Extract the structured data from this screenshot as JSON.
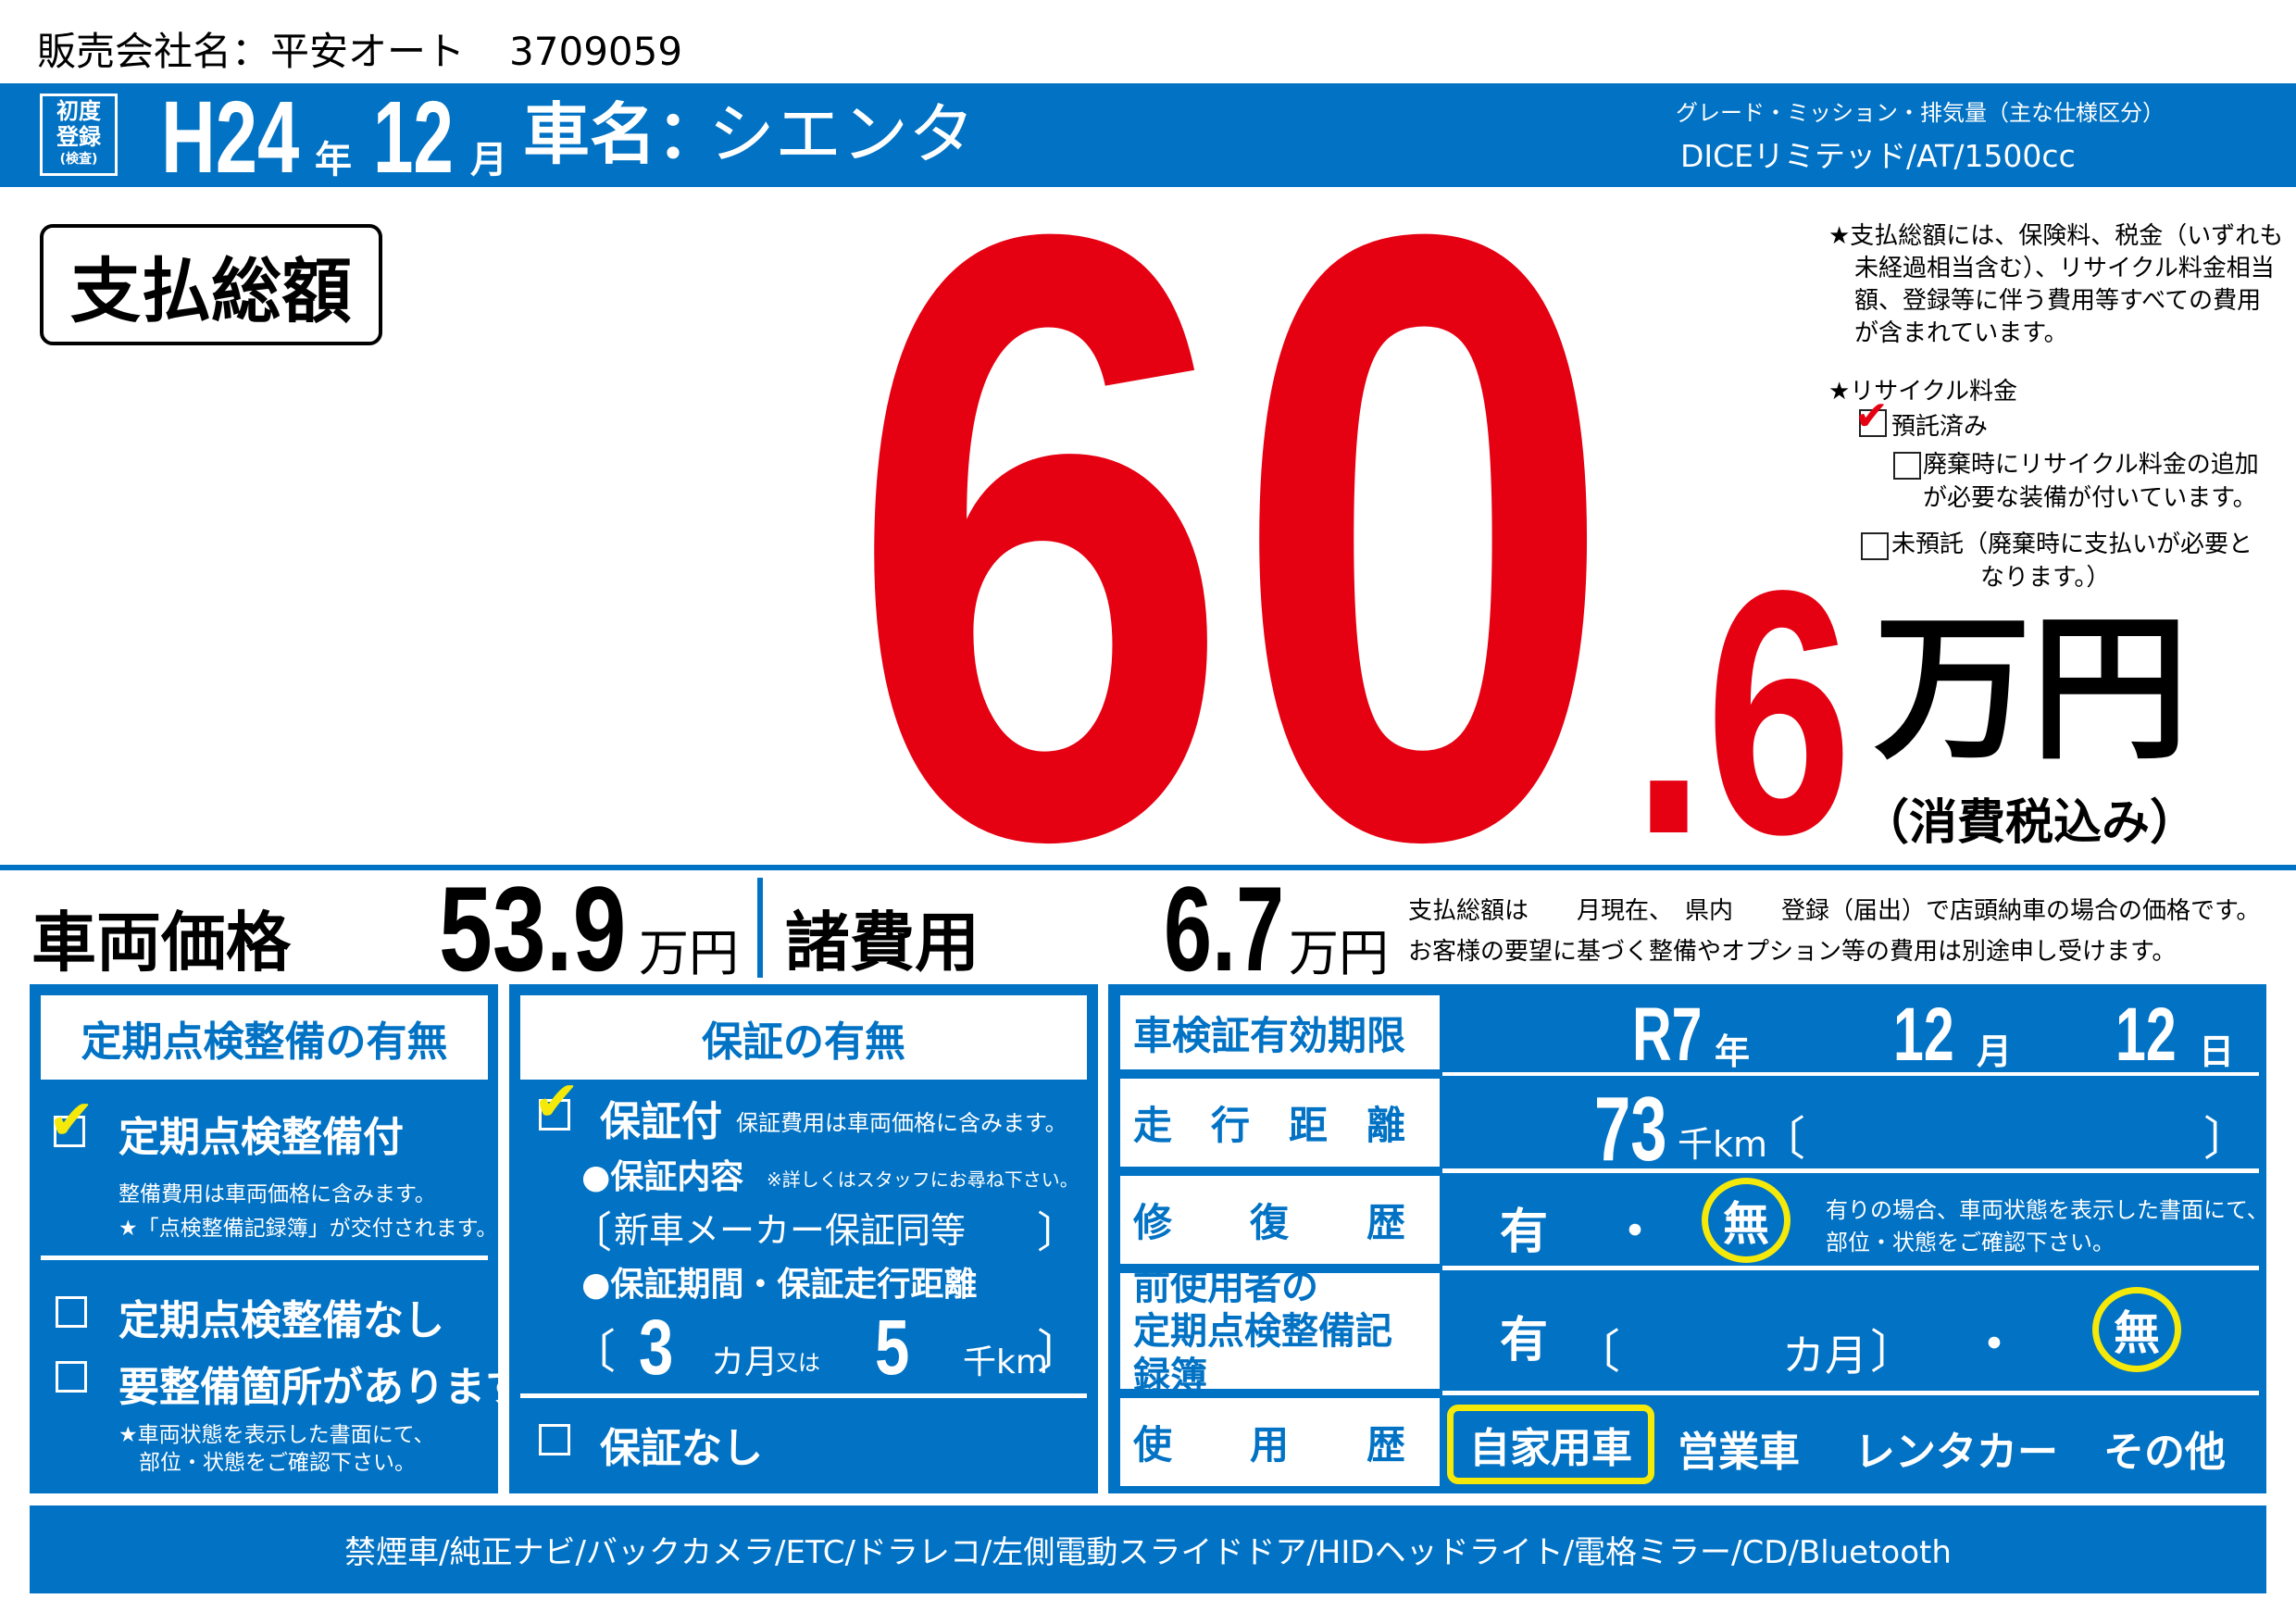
{
  "colors": {
    "brand_blue": "#0172C4",
    "price_red": "#E50012",
    "highlight_yellow": "#F5E90A"
  },
  "seller": {
    "label": "販売会社名：",
    "name": "平安オート",
    "code": "3709059"
  },
  "header": {
    "first_reg_label": [
      "初度",
      "登録",
      "(検査)"
    ],
    "year_value": "H24",
    "year_unit": "年",
    "month_value": "12",
    "month_unit": "月",
    "car_name_label": "車名：",
    "car_name": "シエンタ",
    "grade_label": "グレード・ミッション・排気量（主な仕様区分）",
    "grade_value": "DICEリミテッド/AT/1500cc"
  },
  "total": {
    "label": "支払総額",
    "integer": "60",
    "decimal": ".6",
    "unit": "万円",
    "tax_note": "（消費税込み）"
  },
  "notes": {
    "total_note": [
      "★支払総額には、保険料、税金（いずれも",
      "未経過相当含む）、リサイクル料金相当",
      "額、登録等に伴う費用等すべての費用",
      "が含まれています。"
    ],
    "recycle_title": "★リサイクル料金",
    "recycle_deposited": {
      "label": "預託済み",
      "checked": true
    },
    "recycle_extra": {
      "label": [
        "廃棄時にリサイクル料金の追加",
        "が必要な装備が付いています。"
      ],
      "checked": false
    },
    "recycle_not_deposited": {
      "label": [
        "未預託（廃棄時に支払いが必要と",
        "なります。）"
      ],
      "checked": false
    }
  },
  "price_row": {
    "vehicle_label": "車両価格",
    "vehicle_value": "53.9",
    "vehicle_unit": "万円",
    "fees_label": "諸費用",
    "fees_value": "6.7",
    "fees_unit": "万円",
    "footnote": [
      "支払総額は　　月現在、　県内　　登録（届出）で店頭納車の場合の価格です。",
      "お客様の要望に基づく整備やオプション等の費用は別途申し受けます。"
    ]
  },
  "inspection": {
    "title": "定期点検整備の有無",
    "with": {
      "label": "定期点検整備付",
      "checked": true,
      "notes": [
        "整備費用は車両価格に含みます。",
        "★「点検整備記録簿」が交付されます。"
      ]
    },
    "without": {
      "label": "定期点検整備なし",
      "checked": false
    },
    "needs_repair": {
      "label": "要整備箇所があります",
      "checked": false,
      "notes": [
        "★車両状態を表示した書面にて、",
        "部位・状態をご確認下さい。"
      ]
    }
  },
  "warranty": {
    "title": "保証の有無",
    "with": {
      "label": "保証付",
      "checked": true,
      "note": "保証費用は車両価格に含みます。"
    },
    "content_label": "●保証内容",
    "content_note": "※詳しくはスタッフにお尋ね下さい。",
    "content_value": "新車メーカー保証同等",
    "period_label": "●保証期間・保証走行距離",
    "period_months": "3",
    "months_unit": "カ月",
    "or": "又は",
    "distance": "5",
    "distance_unit": "千km",
    "without": {
      "label": "保証なし",
      "checked": false
    },
    "open_bracket": "〔",
    "close_bracket": "〕"
  },
  "details": {
    "inspection_expiry": {
      "label": "車検証有効期限",
      "year": "R7",
      "year_unit": "年",
      "month": "12",
      "month_unit": "月",
      "day": "12",
      "day_unit": "日"
    },
    "mileage": {
      "label": "走　行　距　離",
      "value": "73",
      "unit": "千km"
    },
    "repair_history": {
      "label": "修　　復　　歴",
      "yes": "有",
      "dot": "・",
      "no": "無",
      "selected": "無",
      "note": [
        "有りの場合、車両状態を表示した書面にて、",
        "部位・状態をご確認下さい。"
      ]
    },
    "records": {
      "label": [
        "前使用者の",
        "定期点検整備記録簿"
      ],
      "yes": "有",
      "months_unit": "カ月",
      "dot": "・",
      "no": "無",
      "selected": "無"
    },
    "usage": {
      "label": "使　　用　　歴",
      "options": [
        "自家用車",
        "営業車",
        "レンタカー",
        "その他"
      ],
      "selected": "自家用車"
    }
  },
  "equipment": "禁煙車/純正ナビ/バックカメラ/ETC/ドラレコ/左側電動スライドドア/HIDヘッドライト/電格ミラー/CD/Bluetooth"
}
